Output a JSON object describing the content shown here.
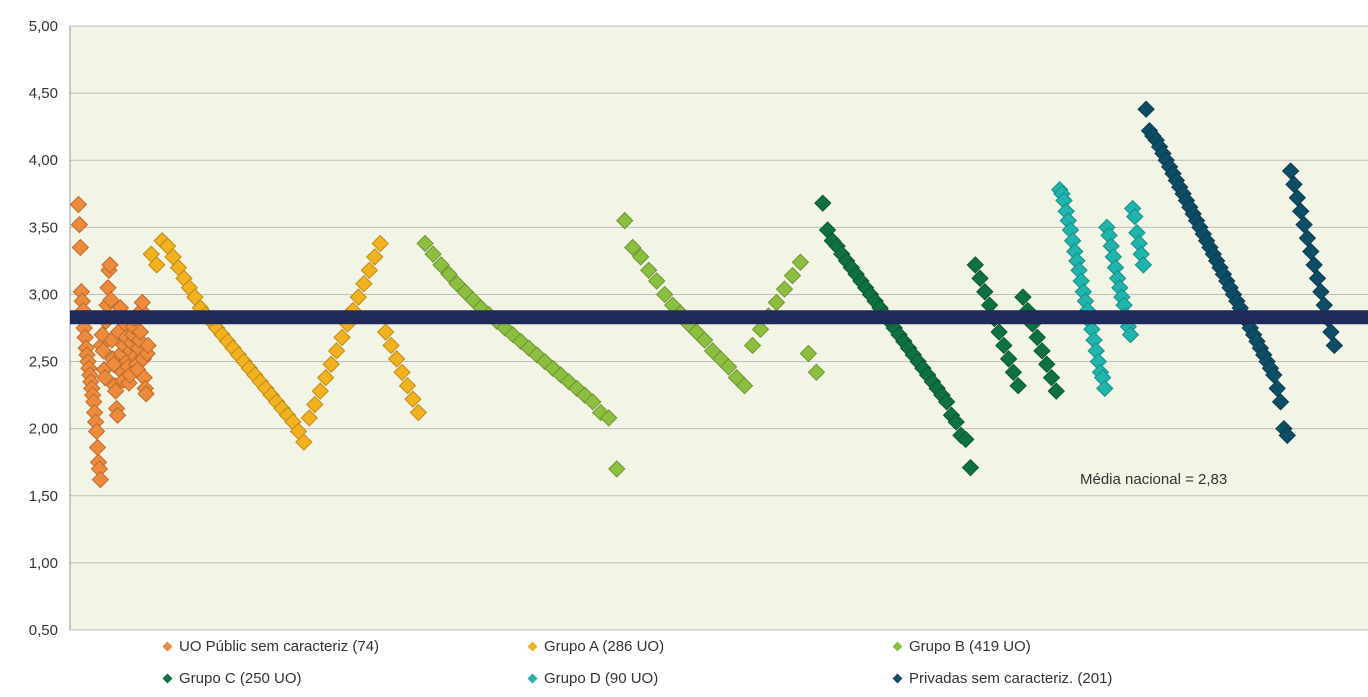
{
  "chart_data": {
    "type": "scatter",
    "title": "",
    "xlabel": "",
    "ylabel": "",
    "ylim": [
      0.5,
      5.0
    ],
    "y_ticks": [
      "0,50",
      "1,00",
      "1,50",
      "2,00",
      "2,50",
      "3,00",
      "3,50",
      "4,00",
      "4,50",
      "5,00"
    ],
    "x_axis_labels_shown": false,
    "grid": "horizontal",
    "legend_position": "bottom",
    "mean_line": {
      "value": 2.83,
      "label": "Média nacional  = 2,83",
      "color": "#1f2a5c"
    },
    "series": [
      {
        "name": "UO Públic sem caracteriz (74)",
        "color": "#ee8a3c",
        "count": 74,
        "x_range": [
          0,
          74
        ],
        "values": [
          3.67,
          3.52,
          3.35,
          3.02,
          2.95,
          2.88,
          2.75,
          2.68,
          2.6,
          2.55,
          2.5,
          2.45,
          2.4,
          2.35,
          2.3,
          2.25,
          2.2,
          2.12,
          2.05,
          1.98,
          1.86,
          1.75,
          1.7,
          1.62,
          2.62,
          2.7,
          2.58,
          2.44,
          2.38,
          2.8,
          2.92,
          3.05,
          3.18,
          3.22,
          2.96,
          2.66,
          2.52,
          2.48,
          2.32,
          2.28,
          2.15,
          2.1,
          2.72,
          2.84,
          2.9,
          2.56,
          2.42,
          2.36,
          2.62,
          2.78,
          2.68,
          2.5,
          2.46,
          2.34,
          2.4,
          2.58,
          2.64,
          2.7,
          2.76,
          2.82,
          2.54,
          2.48,
          2.44,
          2.6,
          2.66,
          2.72,
          2.88,
          2.94,
          2.52,
          2.38,
          2.3,
          2.26,
          2.56,
          2.62
        ]
      },
      {
        "name": "Grupo A (286 UO)",
        "color": "#f2b21f",
        "count": 286,
        "x_range": [
          74,
          360
        ],
        "values": [
          3.3,
          3.22,
          3.4,
          3.36,
          3.28,
          3.2,
          3.12,
          3.05,
          2.98,
          2.9,
          2.85,
          2.8,
          2.75,
          2.7,
          2.65,
          2.6,
          2.55,
          2.5,
          2.45,
          2.4,
          2.35,
          2.3,
          2.25,
          2.2,
          2.15,
          2.1,
          2.05,
          1.98,
          1.9,
          2.08,
          2.18,
          2.28,
          2.38,
          2.48,
          2.58,
          2.68,
          2.78,
          2.88,
          2.98,
          3.08,
          3.18,
          3.28,
          3.38,
          2.72,
          2.62,
          2.52,
          2.42,
          2.32,
          2.22,
          2.12
        ]
      },
      {
        "name": "Grupo B (419 UO)",
        "color": "#8cbf3f",
        "count": 419,
        "x_range": [
          360,
          779
        ],
        "values": [
          3.38,
          3.3,
          3.22,
          3.15,
          3.08,
          3.02,
          2.96,
          2.9,
          2.85,
          2.8,
          2.75,
          2.7,
          2.65,
          2.6,
          2.55,
          2.5,
          2.45,
          2.4,
          2.35,
          2.3,
          2.25,
          2.2,
          2.12,
          2.08,
          1.7,
          3.55,
          3.35,
          3.28,
          3.18,
          3.1,
          3.0,
          2.92,
          2.86,
          2.78,
          2.72,
          2.66,
          2.58,
          2.52,
          2.46,
          2.38,
          2.32,
          2.62,
          2.74,
          2.84,
          2.94,
          3.04,
          3.14,
          3.24,
          2.56,
          2.42
        ]
      },
      {
        "name": "Grupo C (250 UO)",
        "color": "#0f7143",
        "count": 250,
        "x_range": [
          779,
          1029
        ],
        "values": [
          3.68,
          3.48,
          3.4,
          3.36,
          3.3,
          3.25,
          3.2,
          3.15,
          3.1,
          3.05,
          3.0,
          2.95,
          2.9,
          2.85,
          2.8,
          2.75,
          2.7,
          2.65,
          2.6,
          2.55,
          2.5,
          2.45,
          2.4,
          2.35,
          2.3,
          2.25,
          2.2,
          2.1,
          2.05,
          1.95,
          1.92,
          1.71,
          3.22,
          3.12,
          3.02,
          2.92,
          2.82,
          2.72,
          2.62,
          2.52,
          2.42,
          2.32,
          2.98,
          2.88,
          2.78,
          2.68,
          2.58,
          2.48,
          2.38,
          2.28
        ]
      },
      {
        "name": "Grupo D (90 UO)",
        "color": "#1fb5ad",
        "count": 90,
        "x_range": [
          1029,
          1119
        ],
        "values": [
          3.78,
          3.75,
          3.7,
          3.62,
          3.55,
          3.48,
          3.4,
          3.32,
          3.25,
          3.18,
          3.1,
          3.02,
          2.95,
          2.88,
          2.8,
          2.74,
          2.66,
          2.58,
          2.5,
          2.42,
          2.38,
          2.3,
          3.5,
          3.44,
          3.36,
          3.28,
          3.2,
          3.12,
          3.05,
          2.98,
          2.92,
          2.84,
          2.76,
          2.7,
          3.64,
          3.58,
          3.46,
          3.38,
          3.3,
          3.22
        ]
      },
      {
        "name": "Privadas sem caracteriz. (201)",
        "color": "#0e4d66",
        "count": 201,
        "x_range": [
          1119,
          1320
        ],
        "values": [
          4.38,
          4.22,
          4.18,
          4.15,
          4.1,
          4.05,
          4.0,
          3.95,
          3.9,
          3.85,
          3.8,
          3.75,
          3.7,
          3.65,
          3.6,
          3.55,
          3.5,
          3.45,
          3.4,
          3.35,
          3.3,
          3.25,
          3.2,
          3.15,
          3.1,
          3.05,
          3.0,
          2.95,
          2.9,
          2.85,
          2.8,
          2.75,
          2.7,
          2.65,
          2.6,
          2.55,
          2.5,
          2.45,
          2.4,
          2.3,
          2.2,
          2.0,
          1.95,
          3.92,
          3.82,
          3.72,
          3.62,
          3.52,
          3.42,
          3.32,
          3.22,
          3.12,
          3.02,
          2.92,
          2.82,
          2.72,
          2.62
        ]
      }
    ]
  }
}
